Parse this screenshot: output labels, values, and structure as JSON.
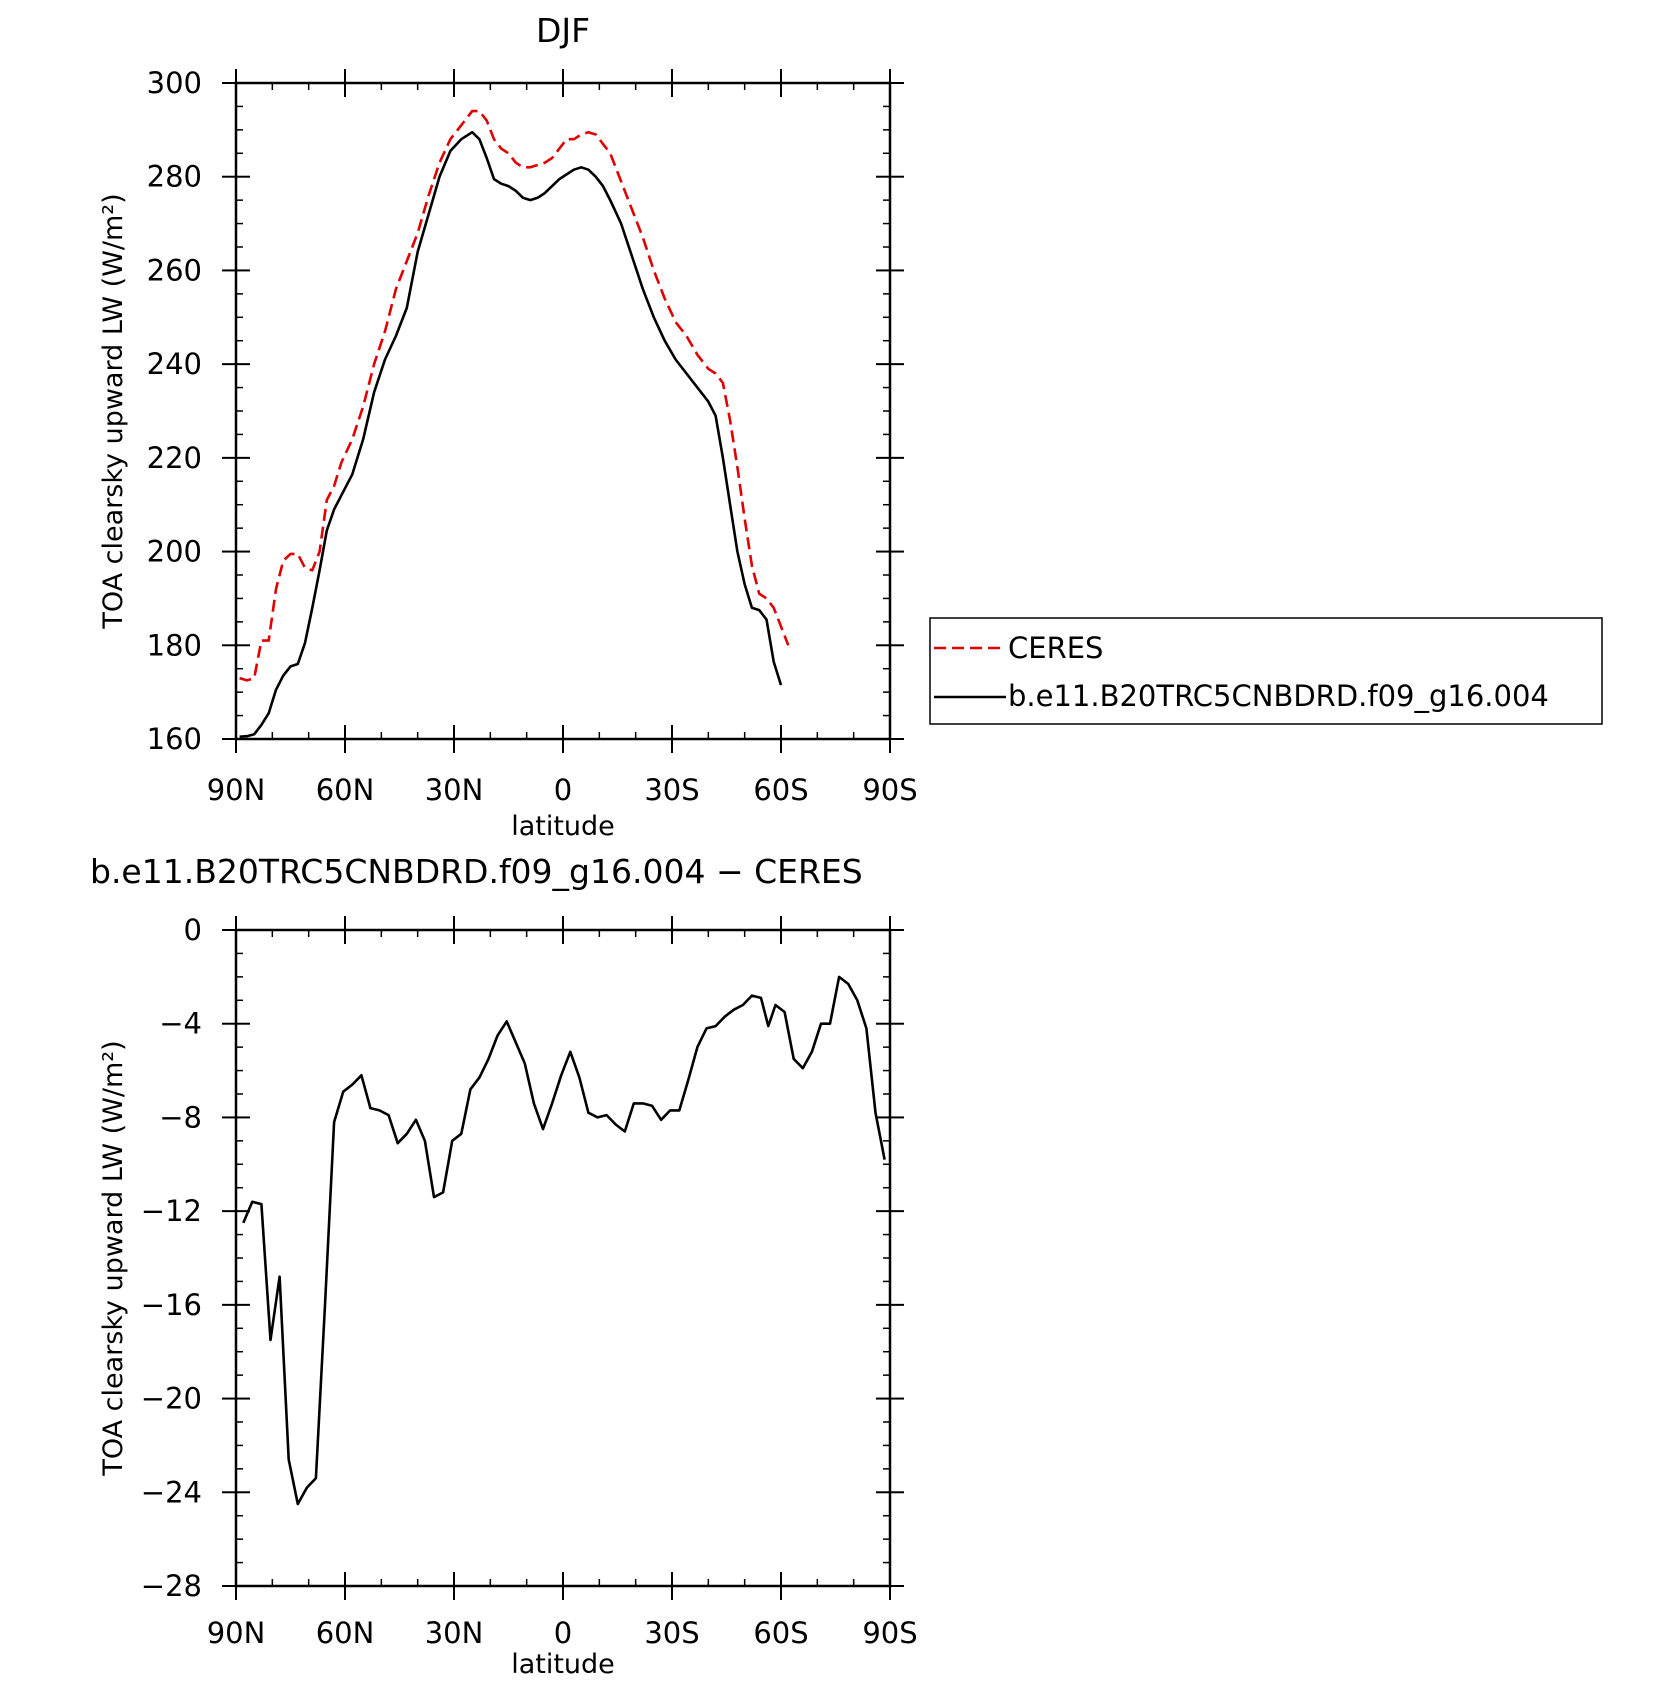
{
  "chart_data": [
    {
      "type": "line",
      "title": "DJF",
      "xlabel": "latitude",
      "ylabel": "TOA clearsky upward LW (W/m²)",
      "xlim": [
        -90,
        90
      ],
      "ylim": [
        160,
        300
      ],
      "x_ticks": [
        -90,
        -60,
        -30,
        0,
        30,
        60,
        90
      ],
      "x_tick_labels": [
        "90N",
        "60N",
        "30N",
        "0",
        "30S",
        "60S",
        "90S"
      ],
      "y_ticks": [
        160,
        180,
        200,
        220,
        240,
        260,
        280,
        300
      ],
      "y_tick_labels": [
        "160",
        "180",
        "200",
        "220",
        "240",
        "260",
        "280",
        "300"
      ],
      "legend_position": "right",
      "series": [
        {
          "name": "CERES",
          "color": "#e00000",
          "dash": true,
          "points": [
            [
              -89,
              173
            ],
            [
              -87,
              172.5
            ],
            [
              -85,
              173
            ],
            [
              -83,
              181
            ],
            [
              -81,
              181
            ],
            [
              -79,
              192
            ],
            [
              -77,
              198
            ],
            [
              -75,
              199.5
            ],
            [
              -73,
              199.5
            ],
            [
              -71,
              196.5
            ],
            [
              -69,
              196
            ],
            [
              -67,
              200
            ],
            [
              -65,
              211
            ],
            [
              -63,
              214
            ],
            [
              -61,
              219
            ],
            [
              -58,
              224
            ],
            [
              -55,
              231
            ],
            [
              -52,
              240
            ],
            [
              -49,
              247
            ],
            [
              -46,
              256
            ],
            [
              -43,
              262
            ],
            [
              -40,
              268
            ],
            [
              -37,
              276
            ],
            [
              -34,
              283
            ],
            [
              -31,
              288
            ],
            [
              -28,
              291
            ],
            [
              -25,
              294
            ],
            [
              -23,
              294
            ],
            [
              -21,
              292
            ],
            [
              -19,
              288
            ],
            [
              -17,
              286
            ],
            [
              -15,
              285
            ],
            [
              -13,
              283
            ],
            [
              -11,
              282
            ],
            [
              -9,
              282
            ],
            [
              -7,
              282.5
            ],
            [
              -5,
              283
            ],
            [
              -3,
              284
            ],
            [
              -1,
              286
            ],
            [
              1,
              288
            ],
            [
              3,
              288
            ],
            [
              5,
              289
            ],
            [
              7,
              289.5
            ],
            [
              9,
              289
            ],
            [
              11,
              287
            ],
            [
              13,
              285
            ],
            [
              16,
              279
            ],
            [
              19,
              273
            ],
            [
              22,
              267
            ],
            [
              25,
              260
            ],
            [
              28,
              254
            ],
            [
              31,
              249
            ],
            [
              34,
              246
            ],
            [
              37,
              242
            ],
            [
              40,
              239
            ],
            [
              42,
              238
            ],
            [
              44,
              236
            ],
            [
              46,
              228
            ],
            [
              48,
              218
            ],
            [
              50,
              207
            ],
            [
              52,
              197
            ],
            [
              54,
              191
            ],
            [
              56,
              190
            ],
            [
              58,
              188
            ],
            [
              60,
              184
            ],
            [
              62,
              180
            ]
          ]
        },
        {
          "name": "b.e11.B20TRC5CNBDRD.f09_g16.004",
          "color": "#000000",
          "dash": false,
          "points": [
            [
              -89,
              160.5
            ],
            [
              -87,
              160.6
            ],
            [
              -85,
              161
            ],
            [
              -83,
              163
            ],
            [
              -81,
              165.5
            ],
            [
              -79,
              170.5
            ],
            [
              -77,
              173.5
            ],
            [
              -75,
              175.5
            ],
            [
              -73,
              176
            ],
            [
              -71,
              180.5
            ],
            [
              -69,
              188
            ],
            [
              -67,
              196
            ],
            [
              -65,
              204.5
            ],
            [
              -63,
              209
            ],
            [
              -61,
              212
            ],
            [
              -58,
              216.5
            ],
            [
              -55,
              224
            ],
            [
              -52,
              234
            ],
            [
              -49,
              241
            ],
            [
              -46,
              246
            ],
            [
              -43,
              252
            ],
            [
              -40,
              264
            ],
            [
              -37,
              272
            ],
            [
              -34,
              280
            ],
            [
              -31,
              285.5
            ],
            [
              -28,
              288
            ],
            [
              -25,
              289.5
            ],
            [
              -23,
              288
            ],
            [
              -21,
              284
            ],
            [
              -19,
              279.5
            ],
            [
              -17,
              278.5
            ],
            [
              -15,
              278
            ],
            [
              -13,
              277
            ],
            [
              -11,
              275.5
            ],
            [
              -9,
              275
            ],
            [
              -7,
              275.5
            ],
            [
              -5,
              276.5
            ],
            [
              -3,
              278
            ],
            [
              -1,
              279.5
            ],
            [
              1,
              280.5
            ],
            [
              3,
              281.5
            ],
            [
              5,
              282
            ],
            [
              7,
              281.5
            ],
            [
              9,
              280
            ],
            [
              11,
              278
            ],
            [
              13,
              275
            ],
            [
              16,
              270
            ],
            [
              19,
              263
            ],
            [
              22,
              256
            ],
            [
              25,
              250
            ],
            [
              28,
              245
            ],
            [
              31,
              241
            ],
            [
              34,
              238
            ],
            [
              37,
              235
            ],
            [
              40,
              232
            ],
            [
              42,
              229
            ],
            [
              44,
              220
            ],
            [
              46,
              210
            ],
            [
              48,
              200
            ],
            [
              50,
              193
            ],
            [
              52,
              188
            ],
            [
              54,
              187.5
            ],
            [
              56,
              185.5
            ],
            [
              58,
              176.5
            ],
            [
              60,
              171.5
            ]
          ]
        }
      ]
    },
    {
      "type": "line",
      "title": "b.e11.B20TRC5CNBDRD.f09_g16.004 − CERES",
      "xlabel": "latitude",
      "ylabel": "TOA clearsky upward LW (W/m²)",
      "xlim": [
        -90,
        90
      ],
      "ylim": [
        -28,
        0
      ],
      "x_ticks": [
        -90,
        -60,
        -30,
        0,
        30,
        60,
        90
      ],
      "x_tick_labels": [
        "90N",
        "60N",
        "30N",
        "0",
        "30S",
        "60S",
        "90S"
      ],
      "y_ticks": [
        -28,
        -24,
        -20,
        -16,
        -12,
        -8,
        -4,
        0
      ],
      "y_tick_labels": [
        "−28",
        "−24",
        "−20",
        "−16",
        "−12",
        "−8",
        "−4",
        "0"
      ],
      "series": [
        {
          "color": "#000000",
          "dash": false,
          "points": [
            [
              -88,
              -12.5
            ],
            [
              -85.5,
              -11.6
            ],
            [
              -83,
              -11.7
            ],
            [
              -80.5,
              -17.5
            ],
            [
              -78,
              -14.8
            ],
            [
              -75.5,
              -22.6
            ],
            [
              -73,
              -24.5
            ],
            [
              -70.5,
              -23.8
            ],
            [
              -68,
              -23.4
            ],
            [
              -65.5,
              -16
            ],
            [
              -63,
              -8.2
            ],
            [
              -60.5,
              -6.9
            ],
            [
              -58,
              -6.6
            ],
            [
              -55.5,
              -6.2
            ],
            [
              -53,
              -7.6
            ],
            [
              -50.5,
              -7.7
            ],
            [
              -48,
              -7.9
            ],
            [
              -45.5,
              -9.1
            ],
            [
              -43,
              -8.7
            ],
            [
              -40.5,
              -8.1
            ],
            [
              -38,
              -9
            ],
            [
              -35.5,
              -11.4
            ],
            [
              -33,
              -11.2
            ],
            [
              -30.5,
              -9
            ],
            [
              -28,
              -8.7
            ],
            [
              -25.5,
              -6.8
            ],
            [
              -23,
              -6.3
            ],
            [
              -20.5,
              -5.5
            ],
            [
              -18,
              -4.5
            ],
            [
              -15.5,
              -3.9
            ],
            [
              -13,
              -4.8
            ],
            [
              -10.5,
              -5.7
            ],
            [
              -8,
              -7.4
            ],
            [
              -5.5,
              -8.5
            ],
            [
              -3,
              -7.4
            ],
            [
              -0.5,
              -6.2
            ],
            [
              2,
              -5.2
            ],
            [
              4.5,
              -6.3
            ],
            [
              7,
              -7.8
            ],
            [
              9.5,
              -8
            ],
            [
              12,
              -7.9
            ],
            [
              14.5,
              -8.3
            ],
            [
              17,
              -8.6
            ],
            [
              19.5,
              -7.4
            ],
            [
              22,
              -7.4
            ],
            [
              24.5,
              -7.5
            ],
            [
              27,
              -8.1
            ],
            [
              29.5,
              -7.7
            ],
            [
              32,
              -7.7
            ],
            [
              34.5,
              -6.4
            ],
            [
              37,
              -5
            ],
            [
              39.5,
              -4.2
            ],
            [
              42,
              -4.1
            ],
            [
              44.5,
              -3.7
            ],
            [
              47,
              -3.4
            ],
            [
              49.5,
              -3.2
            ],
            [
              52,
              -2.8
            ],
            [
              54.5,
              -2.9
            ],
            [
              56.5,
              -4.1
            ],
            [
              58.5,
              -3.2
            ],
            [
              61,
              -3.5
            ],
            [
              63.5,
              -5.5
            ],
            [
              66,
              -5.9
            ],
            [
              68.5,
              -5.2
            ],
            [
              71,
              -4
            ],
            [
              73.5,
              -4
            ],
            [
              76,
              -2
            ],
            [
              78.5,
              -2.3
            ],
            [
              81,
              -3
            ],
            [
              83.5,
              -4.2
            ],
            [
              86,
              -7.8
            ],
            [
              88.5,
              -9.8
            ]
          ]
        }
      ]
    }
  ]
}
